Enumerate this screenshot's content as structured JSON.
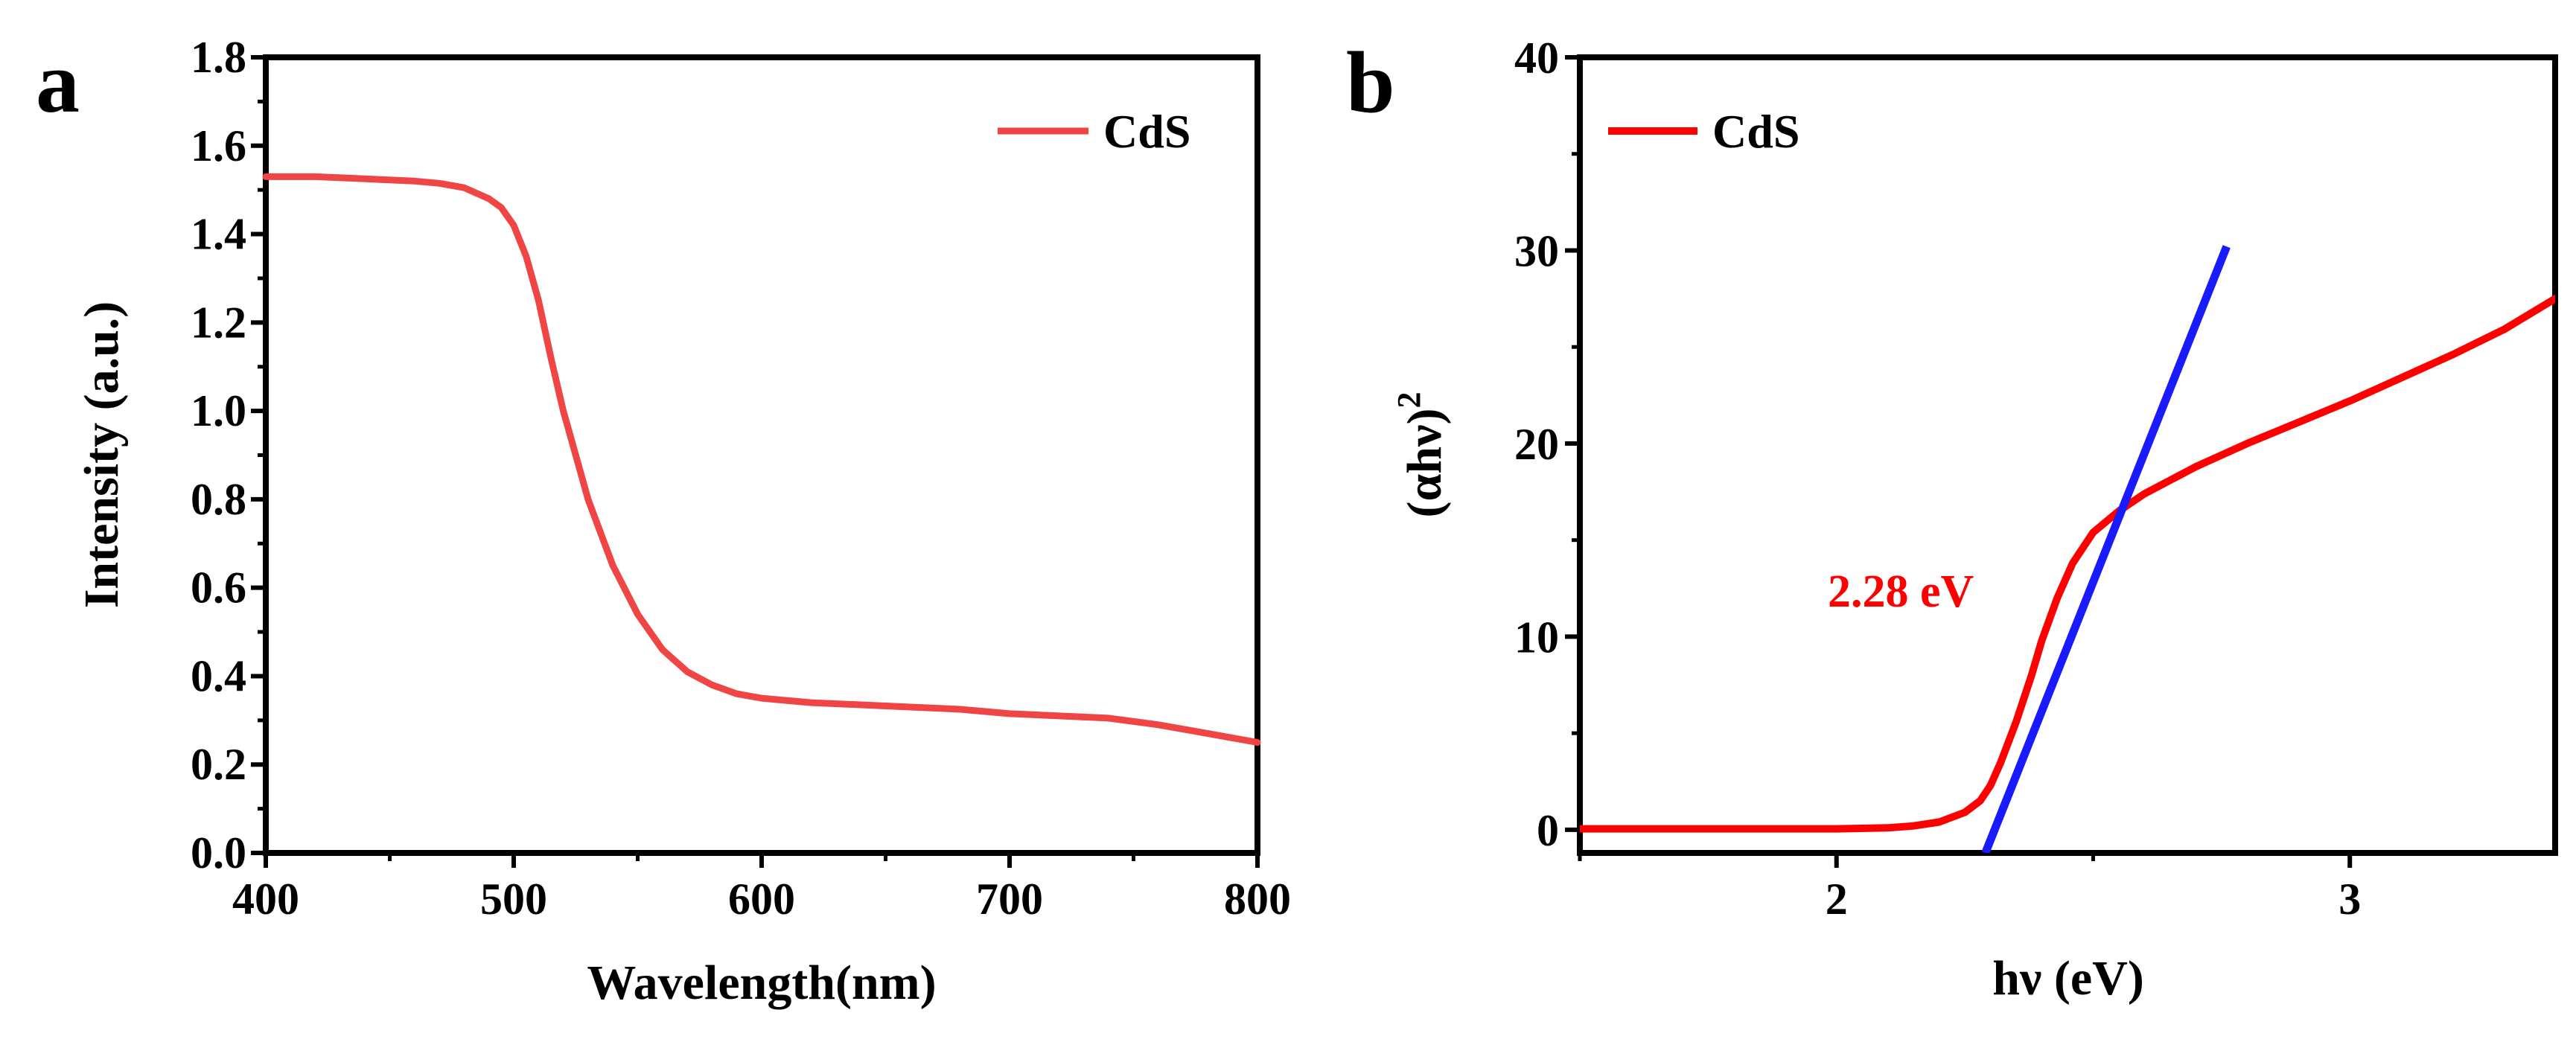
{
  "chart_data": [
    {
      "panel": "a",
      "type": "line",
      "title": "",
      "xlabel": "Wavelength(nm)",
      "ylabel": "Intensity (a.u.)",
      "xlim": [
        400,
        800
      ],
      "ylim": [
        0.0,
        1.8
      ],
      "xticks": [
        400,
        500,
        600,
        700,
        800
      ],
      "xtick_labels": [
        "400",
        "500",
        "600",
        "700",
        "800"
      ],
      "yticks": [
        0.0,
        0.2,
        0.4,
        0.6,
        0.8,
        1.0,
        1.2,
        1.4,
        1.6,
        1.8
      ],
      "ytick_labels": [
        "0.0",
        "0.2",
        "0.4",
        "0.6",
        "0.8",
        "1.0",
        "1.2",
        "1.4",
        "1.6",
        "1.8"
      ],
      "grid": false,
      "legend": "top-right",
      "colors": {
        "series": "#f04545",
        "axis": "#000000"
      },
      "series": [
        {
          "name": "CdS",
          "x": [
            400,
            420,
            440,
            460,
            470,
            480,
            490,
            495,
            500,
            505,
            510,
            515,
            520,
            525,
            530,
            540,
            550,
            560,
            570,
            580,
            590,
            600,
            620,
            640,
            660,
            680,
            700,
            720,
            740,
            760,
            780,
            800
          ],
          "y": [
            1.53,
            1.53,
            1.525,
            1.52,
            1.515,
            1.505,
            1.48,
            1.46,
            1.42,
            1.35,
            1.25,
            1.12,
            1.0,
            0.9,
            0.8,
            0.65,
            0.54,
            0.46,
            0.41,
            0.38,
            0.36,
            0.35,
            0.34,
            0.335,
            0.33,
            0.325,
            0.315,
            0.31,
            0.305,
            0.29,
            0.27,
            0.25
          ]
        }
      ]
    },
    {
      "panel": "b",
      "type": "line",
      "title": "",
      "xlabel": "hν (eV)",
      "ylabel_base": "(αhν)",
      "ylabel_sup": "2",
      "xlim": [
        1.5,
        3.4
      ],
      "ylim": [
        -1.2,
        40
      ],
      "xticks": [
        2,
        3
      ],
      "xtick_labels": [
        "2",
        "3"
      ],
      "yticks": [
        0,
        10,
        20,
        30,
        40
      ],
      "ytick_labels": [
        "0",
        "10",
        "20",
        "30",
        "40"
      ],
      "grid": false,
      "legend": "top-left",
      "colors": {
        "series": "#ff0000",
        "tangent": "#1a1aff",
        "axis": "#000000"
      },
      "series": [
        {
          "name": "CdS",
          "x": [
            1.5,
            1.7,
            1.9,
            2.0,
            2.1,
            2.15,
            2.2,
            2.25,
            2.28,
            2.3,
            2.32,
            2.35,
            2.38,
            2.4,
            2.43,
            2.46,
            2.5,
            2.55,
            2.6,
            2.7,
            2.8,
            2.9,
            3.0,
            3.1,
            3.2,
            3.3,
            3.4
          ],
          "y": [
            0.05,
            0.05,
            0.05,
            0.05,
            0.1,
            0.2,
            0.4,
            0.9,
            1.5,
            2.3,
            3.5,
            5.6,
            8.0,
            9.8,
            12.0,
            13.8,
            15.4,
            16.5,
            17.4,
            18.8,
            20.0,
            21.1,
            22.2,
            23.4,
            24.6,
            25.9,
            27.5
          ]
        }
      ],
      "tangent": {
        "x": [
          2.29,
          2.76
        ],
        "y": [
          -1.2,
          30.2
        ]
      },
      "annotation": "2.28 eV"
    }
  ]
}
